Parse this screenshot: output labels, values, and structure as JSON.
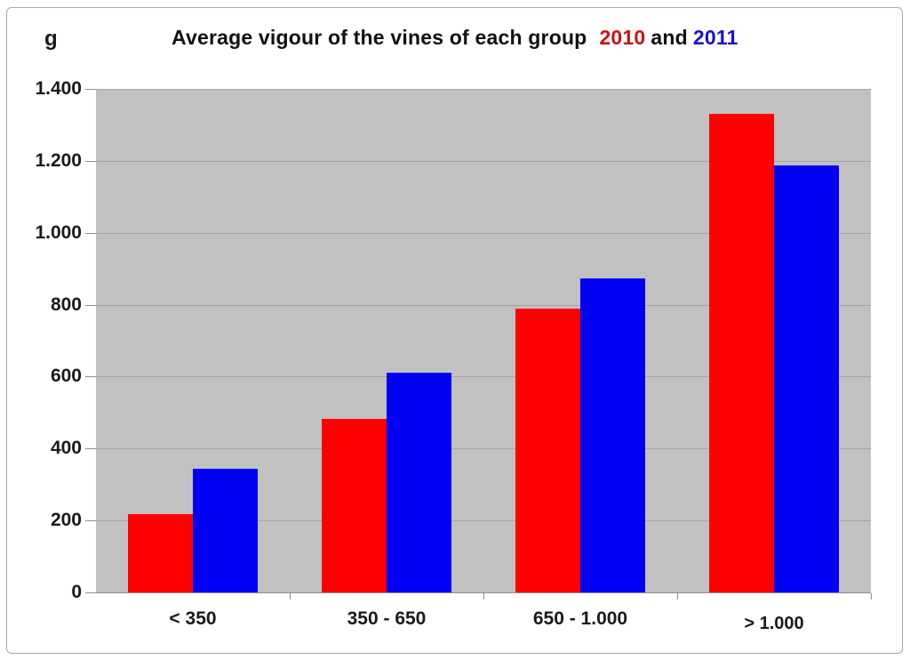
{
  "title": {
    "main": "Average vigour of the vines of each group",
    "year_2010": "2010",
    "and": "and",
    "year_2011": "2011"
  },
  "y_axis": {
    "unit_label": "g",
    "tick_labels": [
      "1.400",
      "1.200",
      "1.000",
      "800",
      "600",
      "400",
      "200",
      "0"
    ]
  },
  "chart_data": {
    "type": "bar",
    "title": "Average vigour of the vines of each group 2010 and 2011",
    "xlabel": "",
    "ylabel": "g",
    "ylim": [
      0,
      1400
    ],
    "ytick_step": 200,
    "grid": true,
    "legend_position": "inline-in-title",
    "categories": [
      "< 350",
      "350 - 650",
      "650 - 1.000",
      "> 1.000"
    ],
    "series": [
      {
        "name": "2010",
        "color": "#ff0000",
        "values": [
          218,
          482,
          790,
          1330
        ]
      },
      {
        "name": "2011",
        "color": "#0000f5",
        "values": [
          343,
          610,
          873,
          1188
        ]
      }
    ]
  },
  "colors": {
    "bar_2010": "#ff0000",
    "bar_2011": "#0000f5",
    "title_2010": "#cc1111",
    "title_2011": "#1414cc",
    "plot_background": "#c1c1c1",
    "gridline": "#a4a4a4"
  }
}
